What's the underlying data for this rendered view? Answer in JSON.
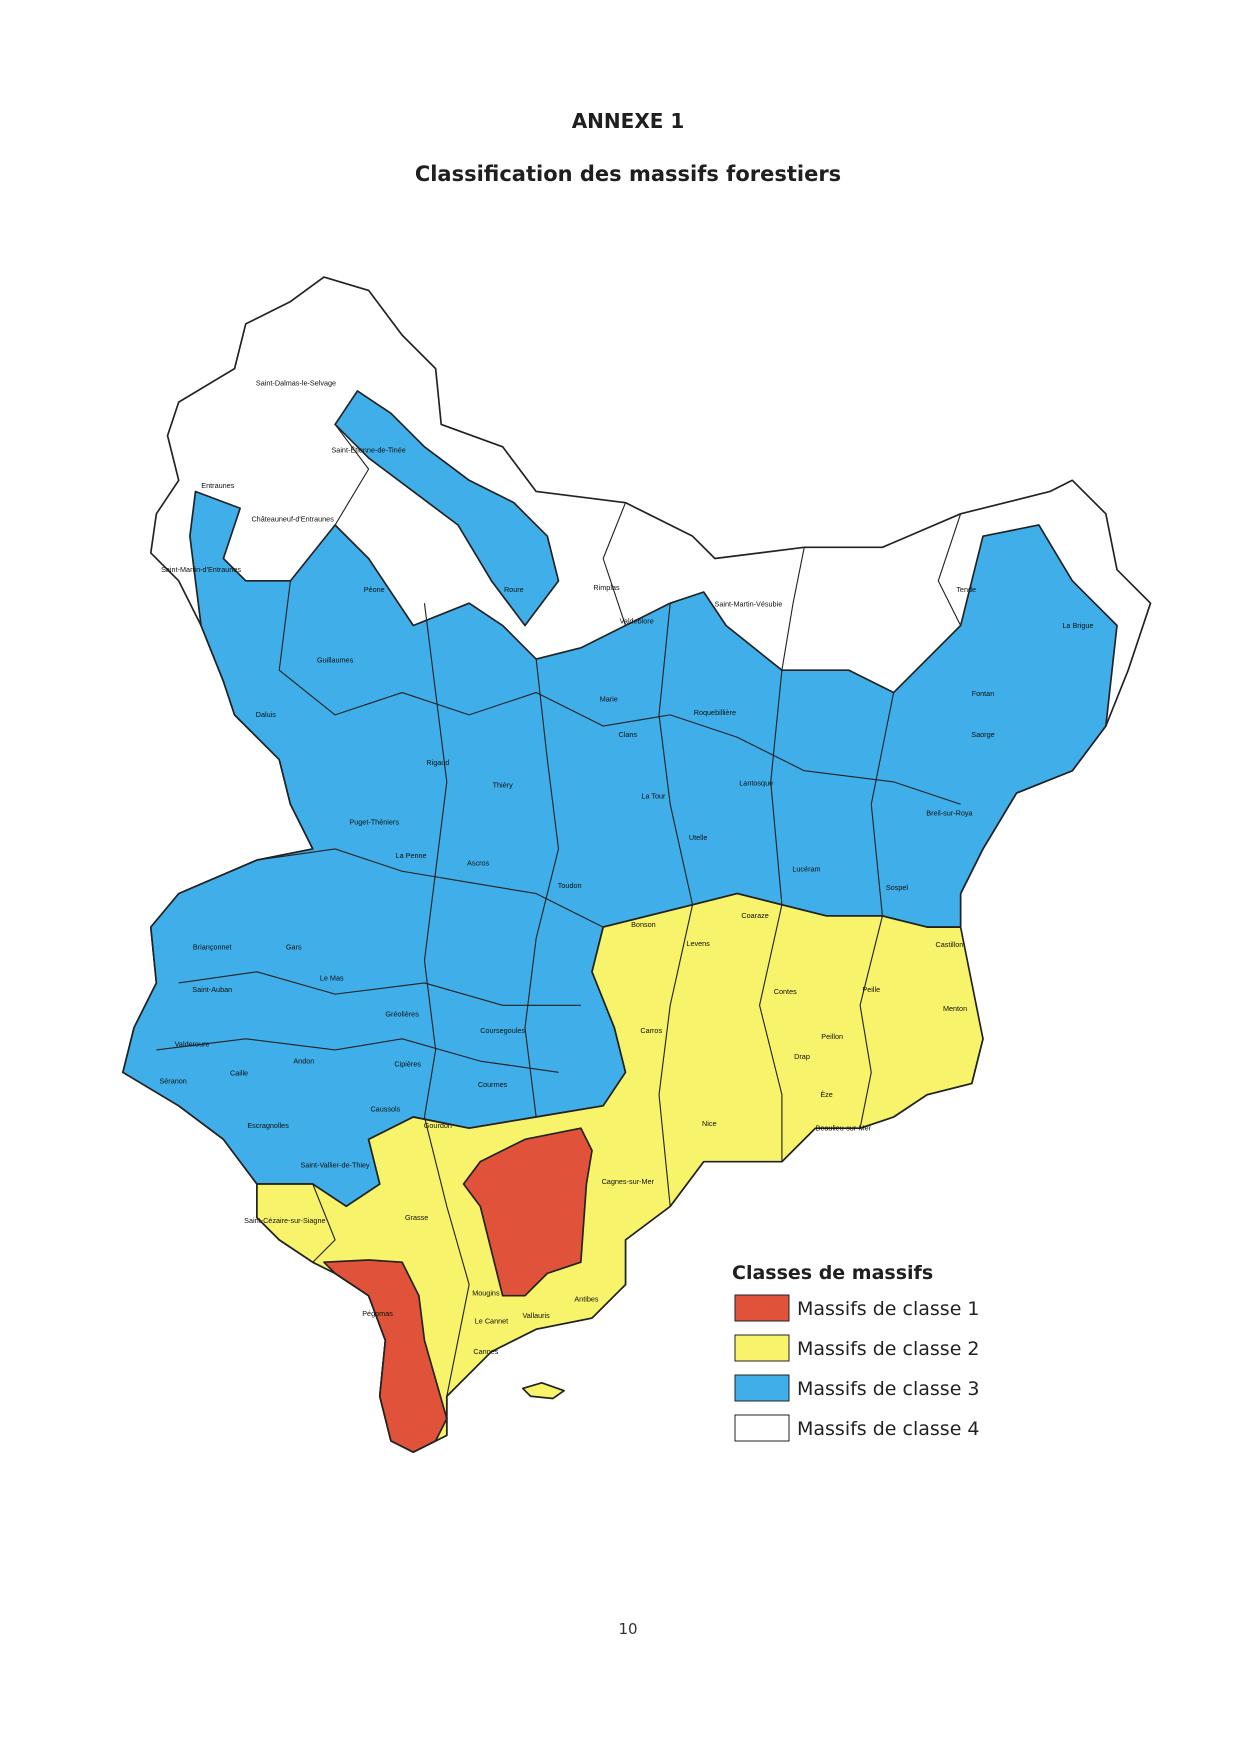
{
  "header": {
    "title": "ANNEXE 1",
    "subtitle": "Classification des massifs forestiers"
  },
  "map": {
    "labels": [
      "Saint-Dalmas-le-Selvage",
      "Saint-Étienne-de-Tinée",
      "Entraunes",
      "Châteauneuf-d'Entraunes",
      "Saint-Martin-d'Entraunes",
      "Péone",
      "Roure",
      "Rimplas",
      "Valdeblore",
      "Saint-Martin-Vésubie",
      "Tende",
      "La Brigue",
      "Guillaumes",
      "Daluis",
      "Marie",
      "Roquebillière",
      "Fontan",
      "Saorge",
      "Clans",
      "Lantosque",
      "La Tour",
      "Rigaud",
      "Thiéry",
      "Puget-Théniers",
      "Utelle",
      "Breil-sur-Roya",
      "Sospel",
      "Lucéram",
      "Toudon",
      "Ascros",
      "La Penne",
      "Bonson",
      "Levens",
      "Coaraze",
      "Castillon",
      "Briançonnet",
      "Gars",
      "Le Mas",
      "Saint-Auban",
      "Gréolières",
      "Coursegoules",
      "Valderoure",
      "Séranon",
      "Caille",
      "Andon",
      "Cipières",
      "Courmes",
      "Caussols",
      "Gourdon",
      "Escragnolles",
      "Saint-Vallier-de-Thiey",
      "Grasse",
      "Nice",
      "Carros",
      "Contes",
      "Peille",
      "Menton",
      "Èze",
      "Beaulieu-sur-Mer",
      "Cagnes-sur-Mer",
      "Antibes",
      "Vallauris",
      "Mougins",
      "Le Cannet",
      "Cannes",
      "Pégomas",
      "Drap",
      "Peillon",
      "Saint-Cézaire-sur-Siagne"
    ]
  },
  "legend": {
    "title": "Classes de massifs",
    "items": [
      "Massifs de classe 1",
      "Massifs de classe 2",
      "Massifs de classe 3",
      "Massifs de  classe 4"
    ]
  },
  "footer": {
    "page_number": "10"
  }
}
